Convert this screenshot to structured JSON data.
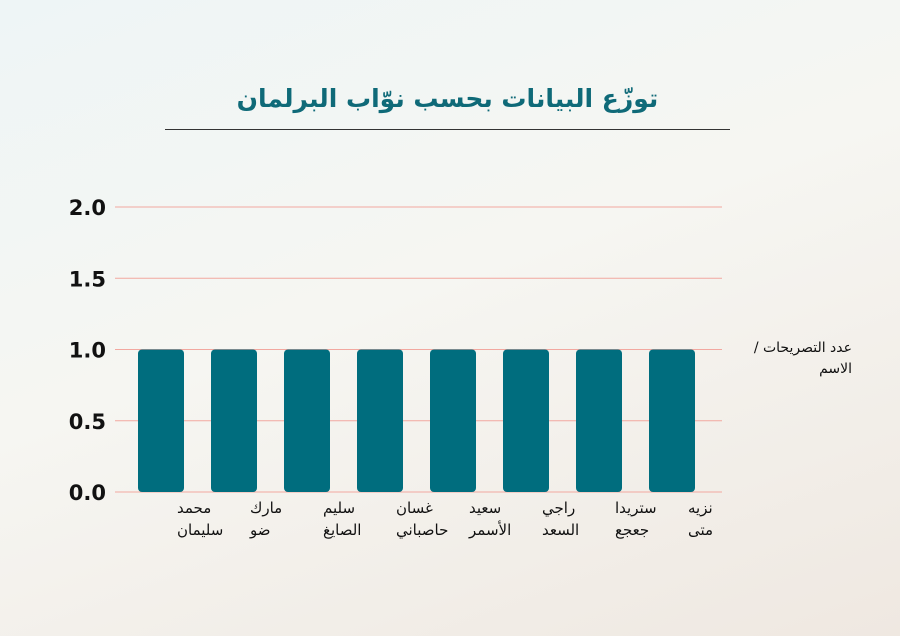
{
  "chart_data": {
    "type": "bar",
    "title": "توزّع البيانات بحسب نوّاب البرلمان",
    "ylabel": "عدد التصريحات / الاسم",
    "xlabel": "",
    "ylim": [
      0,
      2
    ],
    "yticks": [
      "0.0",
      "0.5",
      "1.0",
      "1.5",
      "2.0"
    ],
    "categories": [
      [
        "محمد",
        "سليمان"
      ],
      [
        "مارك",
        "ضو"
      ],
      [
        "سليم",
        "الصايغ"
      ],
      [
        "غسان",
        "حاصباني"
      ],
      [
        "سعيد",
        "الأسمر"
      ],
      [
        "راجي",
        "السعد"
      ],
      [
        "ستريدا",
        "جعجع"
      ],
      [
        "نزيه",
        "متى"
      ]
    ],
    "values": [
      1,
      1,
      1,
      1,
      1,
      1,
      1,
      1
    ],
    "grid": true,
    "colors": {
      "bar": "#006d7e",
      "grid": "#f2a8a0",
      "title": "#0f6a78"
    }
  }
}
